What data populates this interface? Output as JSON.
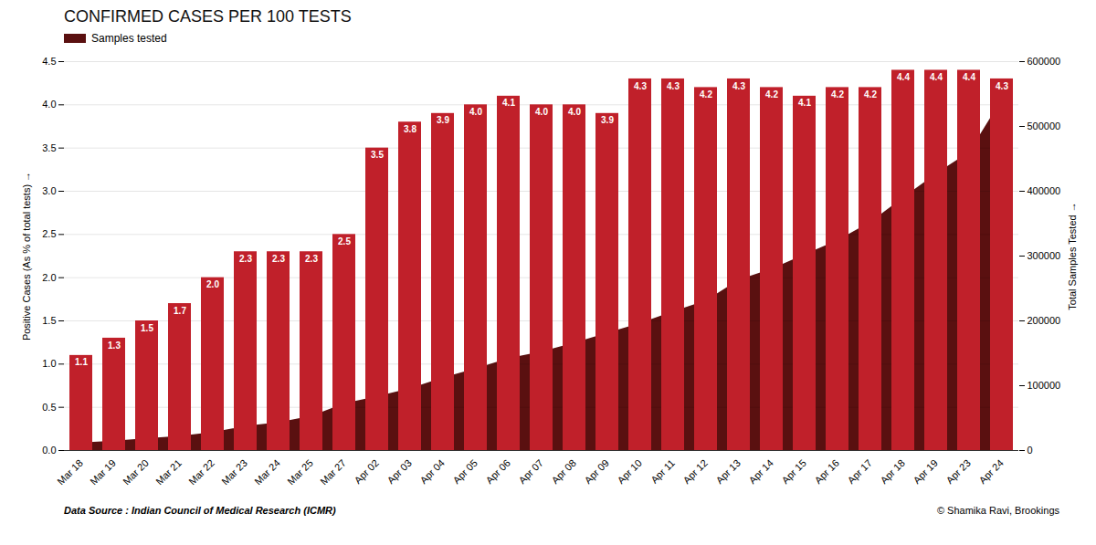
{
  "chart_data": {
    "type": "bar",
    "title": "CONFIRMED CASES PER 100 TESTS",
    "ylabel": "Positive Cases (As % of total tests)",
    "y2label": "Total Samples Tested",
    "annotations": [
      "Data Source : Indian Council of Medical Research (ICMR)",
      "© Shamika Ravi, Brookings"
    ],
    "categories": [
      "Mar 18",
      "Mar 19",
      "Mar 20",
      "Mar 21",
      "Mar 22",
      "Mar 23",
      "Mar 24",
      "Mar 25",
      "Mar 27",
      "Apr 02",
      "Apr 03",
      "Apr 04",
      "Apr 05",
      "Apr 06",
      "Apr 07",
      "Apr 08",
      "Apr 09",
      "Apr 10",
      "Apr 11",
      "Apr 12",
      "Apr 13",
      "Apr 14",
      "Apr 15",
      "Apr 16",
      "Apr 17",
      "Apr 18",
      "Apr 19",
      "Apr 23",
      "Apr 24"
    ],
    "series": [
      {
        "type": "bar",
        "color": "#c0202a",
        "values": [
          1.1,
          1.3,
          1.5,
          1.7,
          2.0,
          2.3,
          2.3,
          2.3,
          2.5,
          3.5,
          3.8,
          3.9,
          4.0,
          4.1,
          4.0,
          4.0,
          3.9,
          4.3,
          4.3,
          4.2,
          4.3,
          4.2,
          4.1,
          4.2,
          4.2,
          4.4,
          4.4,
          4.4,
          4.3
        ],
        "value_labels": [
          "1.1",
          "1.3",
          "1.5",
          "1.7",
          "2.0",
          "2.3",
          "2.3",
          "2.3",
          "2.5",
          "3.5",
          "3.8",
          "3.9",
          "4.0",
          "4.1",
          "4.0",
          "4.0",
          "3.9",
          "4.3",
          "4.3",
          "4.2",
          "4.3",
          "4.2",
          "4.1",
          "4.2",
          "4.2",
          "4.4",
          "4.4",
          "4.4",
          "4.3"
        ]
      },
      {
        "name": "Samples tested",
        "type": "area",
        "axis": "y2",
        "color": "#5a1010",
        "values": [
          11500,
          14375,
          18383,
          21700,
          27688,
          37257,
          42788,
          52952,
          72174,
          83000,
          95400,
          112000,
          126000,
          142000,
          152000,
          166000,
          181000,
          196000,
          214000,
          231000,
          263000,
          280000,
          302000,
          324000,
          352000,
          390000,
          427000,
          460000,
          541789
        ]
      }
    ],
    "ylim": [
      0,
      4.5
    ],
    "yticks": [
      {
        "value": 0,
        "label": "0.0"
      },
      0.5,
      {
        "value": 1,
        "label": "1.0"
      },
      1.5,
      {
        "value": 2,
        "label": "2.0"
      },
      2.5,
      {
        "value": 3,
        "label": "3.0"
      },
      3.5,
      {
        "value": 4,
        "label": "4.0"
      },
      4.5
    ],
    "y2lim": [
      0,
      600000
    ],
    "y2ticks": [
      0,
      100000,
      200000,
      300000,
      400000,
      500000,
      600000
    ],
    "grid": true,
    "legend": "upper left",
    "data_labels": true
  }
}
